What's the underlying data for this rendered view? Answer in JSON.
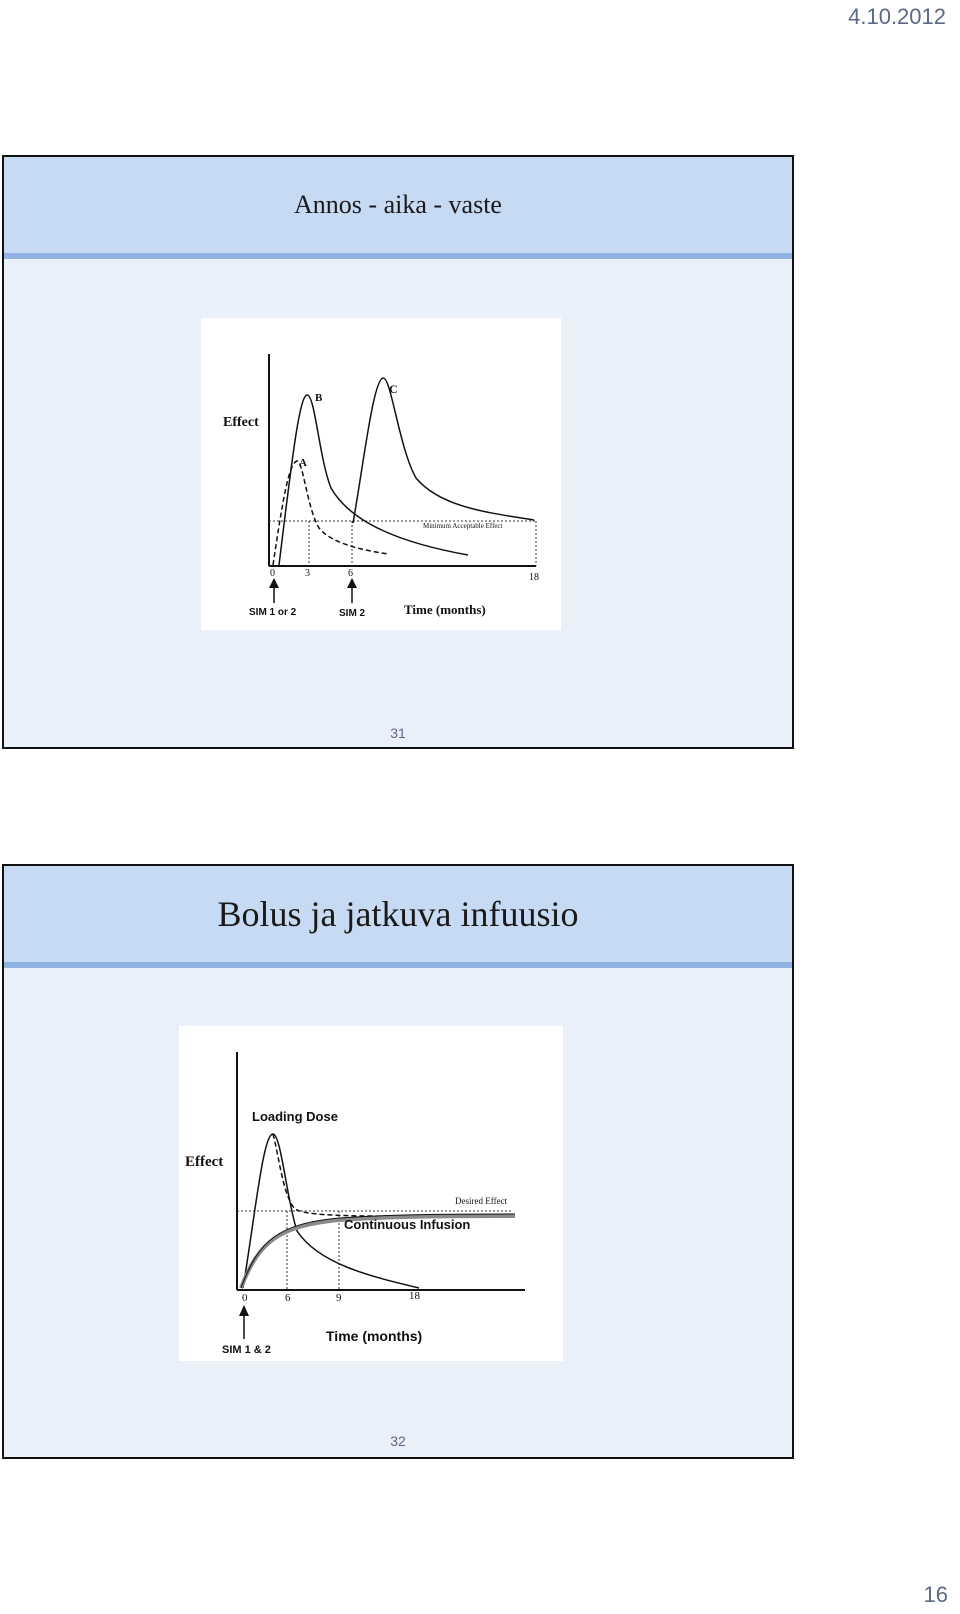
{
  "page": {
    "date": "4.10.2012",
    "number": "16"
  },
  "slides": [
    {
      "title": "Annos - aika - vaste",
      "number": "31",
      "figure": {
        "y_label": "Effect",
        "x_label": "Time (months)",
        "curve_labels": [
          "A",
          "B",
          "C"
        ],
        "threshold_label": "Minimum Acceptable Effect",
        "ticks": [
          "0",
          "3",
          "6",
          "18"
        ],
        "markers": [
          "SIM 1 or 2",
          "SIM 2"
        ]
      }
    },
    {
      "title": "Bolus ja jatkuva infuusio",
      "number": "32",
      "figure": {
        "y_label": "Effect",
        "x_label": "Time (months)",
        "curve_labels": [
          "Loading Dose",
          "Continuous Infusion"
        ],
        "threshold_label": "Desired Effect",
        "ticks": [
          "0",
          "6",
          "9",
          "18"
        ],
        "markers": [
          "SIM 1 & 2"
        ]
      }
    }
  ]
}
